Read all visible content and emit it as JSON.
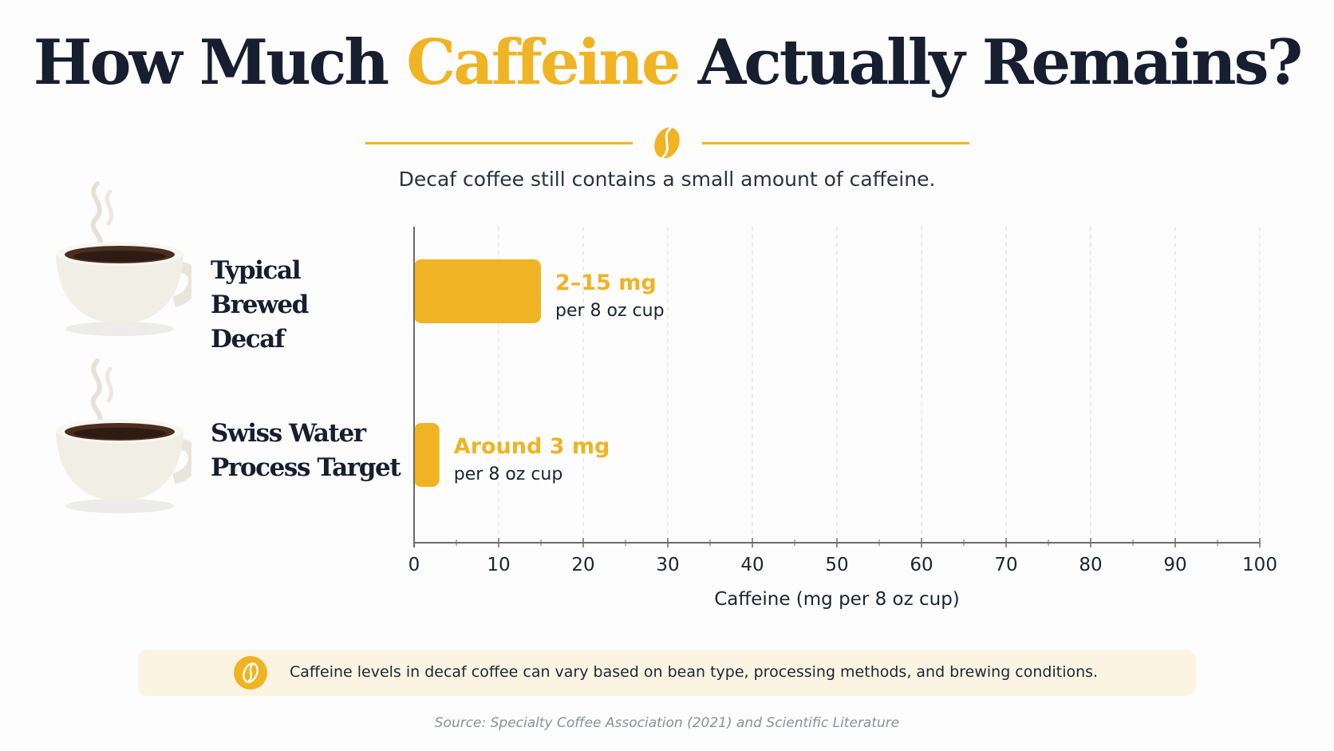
{
  "title": {
    "prefix": "How Much ",
    "highlight": "Caffeine",
    "suffix": " Actually Remains?"
  },
  "subtitle": "Decaf coffee still contains a small amount of caffeine.",
  "chart_data": {
    "type": "bar",
    "orientation": "horizontal",
    "title": "How Much Caffeine Actually Remains?",
    "xlabel": "Caffeine (mg per 8 oz cup)",
    "ylabel": "",
    "xlim": [
      0,
      100
    ],
    "xticks": [
      0,
      10,
      20,
      30,
      40,
      50,
      60,
      70,
      80,
      90,
      100
    ],
    "grid": true,
    "categories": [
      "Typical Brewed Decaf",
      "Swiss Water Process Target"
    ],
    "values": [
      15,
      3
    ],
    "ranges": [
      [
        2,
        15
      ],
      null
    ],
    "data_labels": [
      {
        "value": "2–15 mg",
        "unit": "per 8 oz cup"
      },
      {
        "value": "Around 3 mg",
        "unit": "per 8 oz cup"
      }
    ],
    "bar_color": "#f0b323"
  },
  "categories_display": [
    {
      "line1": "Typical Brewed",
      "line2": "Decaf"
    },
    {
      "line1": "Swiss Water",
      "line2": "Process Target"
    }
  ],
  "note": "Caffeine levels in decaf coffee can vary based on bean type, processing methods, and brewing conditions.",
  "source": "Source: Specialty Coffee Association (2021) and Scientific Literature",
  "colors": {
    "accent": "#f0b323",
    "text": "#161e30",
    "note_bg": "#fbf4e2"
  },
  "icons": [
    "coffee-bean-icon",
    "coffee-cup-icon"
  ]
}
